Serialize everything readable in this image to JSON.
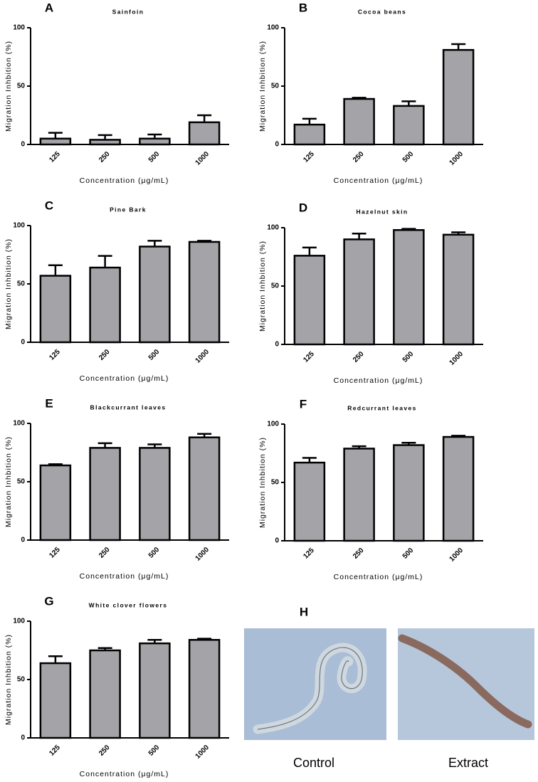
{
  "chart_data": [
    {
      "type": "bar",
      "letter": "A",
      "title": "Sainfoin",
      "categories": [
        "125",
        "250",
        "500",
        "1000"
      ],
      "values": [
        5,
        4,
        5,
        19
      ],
      "errors": [
        5,
        4,
        3.5,
        6
      ],
      "color": "#a3a3a8",
      "xlabel": "Concentration (μg/mL)",
      "ylabel": "Migration Inhbition (%)",
      "ylim": [
        0,
        100
      ],
      "yticks": [
        0,
        50,
        100
      ]
    },
    {
      "type": "bar",
      "letter": "B",
      "title": "Cocoa beans",
      "categories": [
        "125",
        "250",
        "500",
        "1000"
      ],
      "values": [
        17,
        39,
        33,
        81
      ],
      "errors": [
        5,
        1,
        4,
        5
      ],
      "color": "#a3a3a8",
      "xlabel": "Concentration (μg/mL)",
      "ylabel": "Migration Inhbition (%)",
      "ylim": [
        0,
        100
      ],
      "yticks": [
        0,
        50,
        100
      ]
    },
    {
      "type": "bar",
      "letter": "C",
      "title": "Pine Bark",
      "categories": [
        "125",
        "250",
        "500",
        "1000"
      ],
      "values": [
        57,
        64,
        82,
        86
      ],
      "errors": [
        9,
        10,
        5,
        1
      ],
      "color": "#a3a3a8",
      "xlabel": "Concentration (μg/mL)",
      "ylabel": "Migration Inhbition (%)",
      "ylim": [
        0,
        100
      ],
      "yticks": [
        0,
        50,
        100
      ]
    },
    {
      "type": "bar",
      "letter": "D",
      "title": "Hazelnut skin",
      "categories": [
        "125",
        "250",
        "500",
        "1000"
      ],
      "values": [
        76,
        90,
        98,
        94
      ],
      "errors": [
        7,
        5,
        1,
        2
      ],
      "color": "#a3a3a8",
      "xlabel": "Concentration (μg/mL)",
      "ylabel": "Migration Inhbition (%)",
      "ylim": [
        0,
        100
      ],
      "yticks": [
        0,
        50,
        100
      ]
    },
    {
      "type": "bar",
      "letter": "E",
      "title": "Blackcurrant leaves",
      "categories": [
        "125",
        "250",
        "500",
        "1000"
      ],
      "values": [
        64,
        79,
        79,
        88
      ],
      "errors": [
        1,
        4,
        3,
        3
      ],
      "color": "#a3a3a8",
      "xlabel": "Concentration (μg/mL)",
      "ylabel": "Migration Inhbition (%)",
      "ylim": [
        0,
        100
      ],
      "yticks": [
        0,
        50,
        100
      ]
    },
    {
      "type": "bar",
      "letter": "F",
      "title": "Redcurrant leaves",
      "categories": [
        "125",
        "250",
        "500",
        "1000"
      ],
      "values": [
        67,
        79,
        82,
        89
      ],
      "errors": [
        4,
        2,
        2,
        1
      ],
      "color": "#a3a3a8",
      "xlabel": "Concentration (μg/mL)",
      "ylabel": "Migration Inhbition (%)",
      "ylim": [
        0,
        100
      ],
      "yticks": [
        0,
        50,
        100
      ]
    },
    {
      "type": "bar",
      "letter": "G",
      "title": "White clover flowers",
      "categories": [
        "125",
        "250",
        "500",
        "1000"
      ],
      "values": [
        64,
        75,
        81,
        84
      ],
      "errors": [
        6,
        2,
        3,
        1
      ],
      "color": "#a3a3a8",
      "xlabel": "Concentration (μg/mL)",
      "ylabel": "Migration Inhbition (%)",
      "ylim": [
        0,
        100
      ],
      "yticks": [
        0,
        50,
        100
      ]
    }
  ],
  "panel_h": {
    "letter": "H",
    "images": [
      {
        "caption": "Control"
      },
      {
        "caption": "Extract"
      }
    ]
  }
}
